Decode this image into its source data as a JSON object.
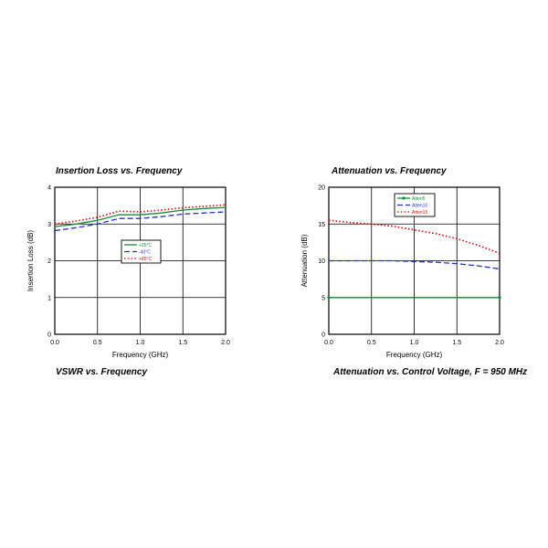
{
  "page": {
    "titles": {
      "insertion_loss": "Insertion Loss vs. Frequency",
      "attenuation_freq": "Attenuation vs. Frequency",
      "vswr": "VSWR vs. Frequency",
      "attenuation_voltage": "Attenuation vs. Control Voltage, F = 950 MHz"
    }
  },
  "chart_data": [
    {
      "type": "line",
      "title": "Insertion Loss vs. Frequency",
      "xlabel": "Frequency (GHz)",
      "ylabel": "Insertion Loss (dB)",
      "xlim": [
        0,
        2
      ],
      "ylim": [
        0,
        4
      ],
      "xticks": [
        "0.0",
        "0.5",
        "1.0",
        "1.5",
        "2.0"
      ],
      "yticks": [
        "0",
        "1",
        "2",
        "3",
        "4"
      ],
      "grid": true,
      "legend_position": "center-right",
      "x": [
        0.0,
        0.25,
        0.5,
        0.75,
        1.0,
        1.25,
        1.5,
        1.75,
        2.0
      ],
      "series": [
        {
          "name": "+25°C",
          "color": "#1a8a3a",
          "dash": "solid",
          "values": [
            2.93,
            3.0,
            3.1,
            3.25,
            3.25,
            3.3,
            3.38,
            3.42,
            3.45
          ]
        },
        {
          "name": "-40°C",
          "color": "#2233bb",
          "dash": "dashed",
          "values": [
            2.82,
            2.9,
            3.0,
            3.15,
            3.15,
            3.2,
            3.27,
            3.3,
            3.33
          ]
        },
        {
          "name": "+85°C",
          "color": "#cc1111",
          "dash": "dotted",
          "values": [
            3.0,
            3.08,
            3.18,
            3.35,
            3.33,
            3.38,
            3.44,
            3.48,
            3.52
          ]
        }
      ]
    },
    {
      "type": "line",
      "title": "Attenuation vs. Frequency",
      "xlabel": "Frequency (GHz)",
      "ylabel": "Attenuation (dB)",
      "xlim": [
        0,
        2
      ],
      "ylim": [
        0,
        20
      ],
      "xticks": [
        "0.0",
        "0.5",
        "1.0",
        "1.5",
        "2.0"
      ],
      "yticks": [
        "0",
        "5",
        "10",
        "15",
        "20"
      ],
      "grid": true,
      "legend_position": "top-center",
      "x": [
        0.0,
        0.25,
        0.5,
        0.75,
        1.0,
        1.25,
        1.5,
        1.75,
        2.0
      ],
      "series": [
        {
          "name": "Atten5",
          "color": "#1a8a3a",
          "dash": "solid",
          "marker": true,
          "values": [
            5.0,
            5.0,
            5.0,
            5.0,
            5.0,
            5.0,
            5.0,
            5.0,
            5.0
          ]
        },
        {
          "name": "Atten10",
          "color": "#2233bb",
          "dash": "dashed",
          "values": [
            10.0,
            10.0,
            10.0,
            10.0,
            9.9,
            9.8,
            9.6,
            9.3,
            8.9
          ]
        },
        {
          "name": "Atten15",
          "color": "#cc1111",
          "dash": "dotted",
          "values": [
            15.5,
            15.2,
            15.0,
            14.7,
            14.2,
            13.7,
            13.0,
            12.1,
            11.0
          ]
        }
      ]
    }
  ]
}
